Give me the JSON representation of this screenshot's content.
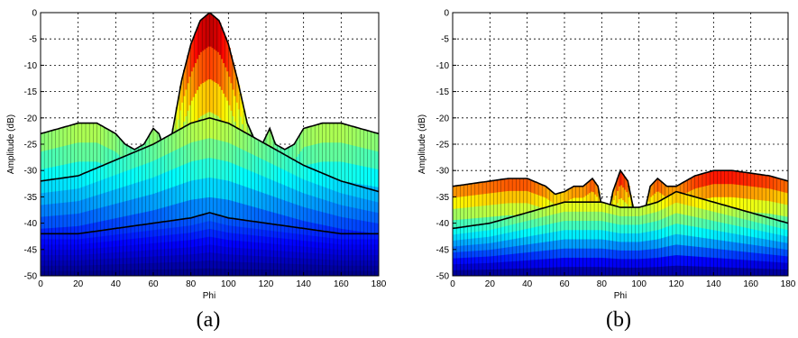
{
  "chart_data": [
    {
      "type": "area",
      "caption": "(a)",
      "xlabel": "Phi",
      "ylabel": "Amplitude (dB)",
      "xlim": [
        0,
        180
      ],
      "ylim": [
        -50,
        0
      ],
      "xticks": [
        0,
        20,
        40,
        60,
        80,
        100,
        120,
        140,
        160,
        180
      ],
      "yticks": [
        0,
        -5,
        -10,
        -15,
        -20,
        -25,
        -30,
        -35,
        -40,
        -45,
        -50
      ],
      "grid": true,
      "colormap": "jet",
      "series": [
        {
          "x": [
            0,
            10,
            20,
            30,
            40,
            45,
            50,
            55,
            60,
            63,
            66,
            70,
            75,
            80,
            85,
            90,
            95,
            100,
            105,
            110,
            115,
            118,
            122,
            125,
            130,
            135,
            140,
            145,
            150,
            160,
            170,
            180
          ],
          "y": [
            -23,
            -22,
            -21,
            -21,
            -23,
            -25,
            -26,
            -25,
            -22,
            -23,
            -26,
            -23,
            -13,
            -6,
            -1.5,
            0,
            -1.5,
            -6,
            -13,
            -21,
            -25,
            -25,
            -22,
            -25,
            -26,
            -25,
            -22,
            -21.5,
            -21,
            -21,
            -22,
            -23
          ]
        },
        {
          "x": [
            0,
            20,
            40,
            60,
            70,
            80,
            90,
            100,
            110,
            120,
            140,
            160,
            180
          ],
          "y": [
            -32,
            -31,
            -28,
            -25,
            -23,
            -21,
            -20,
            -21,
            -23,
            -25,
            -29,
            -32,
            -34
          ]
        },
        {
          "x": [
            0,
            20,
            40,
            60,
            80,
            90,
            100,
            120,
            140,
            160,
            180
          ],
          "y": [
            -42,
            -42,
            -41,
            -40,
            -39,
            -38,
            -39,
            -40,
            -41,
            -42,
            -42
          ]
        }
      ]
    },
    {
      "type": "area",
      "caption": "(b)",
      "xlabel": "Phi",
      "ylabel": "Amplitude (dB)",
      "xlim": [
        0,
        180
      ],
      "ylim": [
        -50,
        0
      ],
      "xticks": [
        0,
        20,
        40,
        60,
        80,
        100,
        120,
        140,
        160,
        180
      ],
      "yticks": [
        0,
        -5,
        -10,
        -15,
        -20,
        -25,
        -30,
        -35,
        -40,
        -45,
        -50
      ],
      "grid": true,
      "colormap": "jet",
      "series": [
        {
          "x": [
            0,
            10,
            20,
            30,
            40,
            50,
            55,
            60,
            65,
            70,
            75,
            78,
            82,
            86,
            90,
            94,
            98,
            100,
            103,
            106,
            110,
            115,
            120,
            130,
            140,
            150,
            160,
            170,
            180
          ],
          "y": [
            -33,
            -32.5,
            -32,
            -31.5,
            -31.5,
            -33,
            -34.5,
            -34,
            -33,
            -33,
            -31.5,
            -33,
            -41,
            -34,
            -30,
            -32,
            -39,
            -42,
            -38,
            -33,
            -31.5,
            -33,
            -33,
            -31,
            -30,
            -30,
            -30.5,
            -31,
            -32
          ]
        },
        {
          "x": [
            0,
            20,
            40,
            60,
            80,
            90,
            100,
            110,
            120,
            140,
            160,
            180
          ],
          "y": [
            -41,
            -40,
            -38,
            -36,
            -36,
            -37,
            -37,
            -36,
            -34,
            -36,
            -38,
            -40
          ]
        }
      ]
    }
  ]
}
